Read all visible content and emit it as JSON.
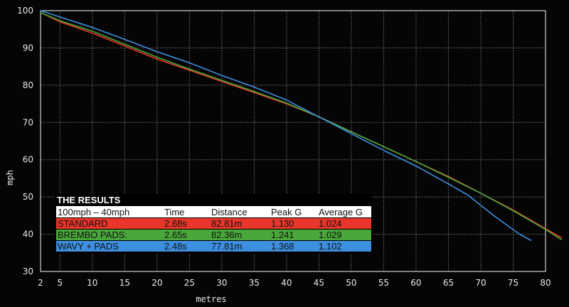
{
  "chart_data": {
    "type": "line",
    "xlabel": "metres",
    "ylabel": "mph",
    "xlim": [
      2,
      80
    ],
    "ylim": [
      30,
      100
    ],
    "x_ticks": [
      2,
      5,
      10,
      15,
      20,
      25,
      30,
      35,
      40,
      45,
      50,
      55,
      60,
      65,
      70,
      75,
      80
    ],
    "y_ticks": [
      30,
      40,
      50,
      60,
      70,
      80,
      90,
      100
    ],
    "grid": true,
    "series": [
      {
        "name": "STANDARD",
        "color": "#e8362a",
        "x": [
          2,
          5,
          10,
          15,
          20,
          25,
          30,
          35,
          40,
          45,
          50,
          55,
          60,
          65,
          70,
          75,
          80,
          82.5
        ],
        "y": [
          99.5,
          97,
          94,
          90.5,
          87,
          84,
          81,
          78,
          75,
          71.5,
          67.5,
          63.5,
          59.5,
          55.5,
          51,
          46.5,
          41.5,
          39
        ]
      },
      {
        "name": "BREMBO PADS:",
        "color": "#4aa83a",
        "x": [
          2,
          5,
          10,
          15,
          20,
          25,
          30,
          35,
          40,
          45,
          50,
          55,
          60,
          65,
          70,
          75,
          80,
          82.5
        ],
        "y": [
          99.5,
          97.3,
          94.5,
          91,
          87.5,
          84.3,
          81.3,
          78.3,
          75.2,
          71.5,
          67.5,
          63.5,
          59.5,
          55.3,
          51,
          46.3,
          41.3,
          38.5
        ]
      },
      {
        "name": "WAVY + PADS",
        "color": "#3d8fe0",
        "x": [
          2,
          5,
          10,
          15,
          20,
          25,
          30,
          35,
          40,
          45,
          50,
          55,
          60,
          65,
          68,
          72,
          76,
          77.8
        ],
        "y": [
          100,
          98.3,
          95.5,
          92.3,
          89,
          86,
          82.6,
          79.5,
          76,
          71.5,
          67,
          62.5,
          58.3,
          53.5,
          50.5,
          45,
          40,
          38.3
        ]
      }
    ],
    "results_table": {
      "title": "THE RESULTS",
      "headers": [
        "100mph – 40mph",
        "Time",
        "Distance",
        "Peak G",
        "Average G"
      ],
      "rows": [
        {
          "label": "STANDARD",
          "time": "2.68s",
          "distance": "82.81m",
          "peak_g": "1.130",
          "average_g": "1.024",
          "color": "#e8362a"
        },
        {
          "label": "BREMBO PADS:",
          "time": "2.65s",
          "distance": "82.36m",
          "peak_g": "1.241",
          "average_g": "1.029",
          "color": "#4aa83a"
        },
        {
          "label": "WAVY + PADS",
          "time": "2.48s",
          "distance": "77.81m",
          "peak_g": "1.368",
          "average_g": "1.102",
          "color": "#3d8fe0"
        }
      ]
    }
  }
}
